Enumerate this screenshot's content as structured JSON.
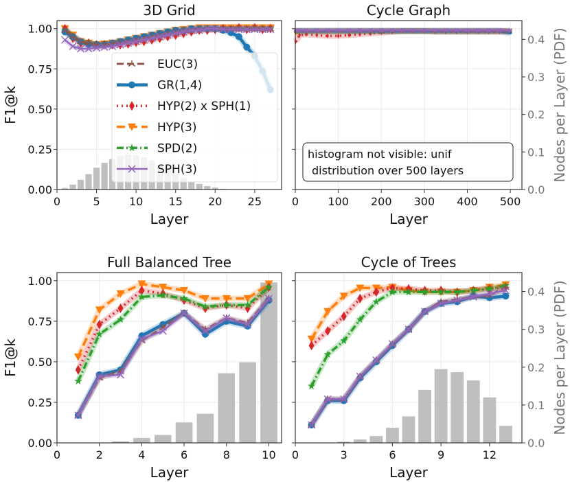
{
  "chart_data": [
    {
      "type": "line",
      "title": "3D Grid",
      "xlabel": "Layer",
      "ylabel": "F1@k",
      "y2label": "",
      "xlim": [
        0,
        28.4
      ],
      "ylim": [
        0,
        1.05
      ],
      "y2lim": [
        0,
        0.45
      ],
      "xticks": [
        0,
        5,
        10,
        15,
        20,
        25
      ],
      "yticks": [
        "0.00",
        "0.25",
        "0.50",
        "0.75",
        "1.00"
      ],
      "y2ticks": [],
      "grid": true,
      "legend_position": "center-right",
      "histogram": {
        "x": [
          1,
          2,
          3,
          4,
          5,
          6,
          7,
          8,
          9,
          10,
          11,
          12,
          13,
          14,
          15,
          16,
          17,
          18,
          19,
          20,
          21,
          22
        ],
        "values": [
          0.004,
          0.013,
          0.026,
          0.041,
          0.058,
          0.071,
          0.081,
          0.09,
          0.094,
          0.092,
          0.086,
          0.077,
          0.064,
          0.051,
          0.043,
          0.032,
          0.021,
          0.015,
          0.009,
          0.005,
          0.002,
          0.001
        ]
      },
      "x": [
        1,
        2,
        3,
        4,
        5,
        6,
        7,
        8,
        9,
        10,
        11,
        12,
        13,
        14,
        15,
        16,
        17,
        18,
        19,
        20,
        21,
        22,
        23,
        24,
        25,
        26,
        27
      ],
      "series": [
        {
          "name": "EUC(3)",
          "color": "#8c564b",
          "values": [
            0.99,
            0.95,
            0.92,
            0.91,
            0.9,
            0.9,
            0.91,
            0.915,
            0.92,
            0.93,
            0.94,
            0.95,
            0.96,
            0.97,
            0.98,
            0.99,
            0.99,
            1.0,
            1.0,
            1.0,
            1.0,
            1.0,
            1.0,
            1.0,
            1.0,
            1.0,
            1.0
          ]
        },
        {
          "name": "GR(1,4)",
          "color": "#1f77b4",
          "values": [
            0.98,
            0.95,
            0.92,
            0.9,
            0.9,
            0.9,
            0.91,
            0.92,
            0.93,
            0.94,
            0.95,
            0.96,
            0.97,
            0.98,
            0.99,
            0.99,
            1.0,
            1.0,
            1.0,
            1.0,
            0.99,
            0.975,
            0.95,
            0.885,
            0.83,
            0.735,
            0.62
          ]
        },
        {
          "name": "HYP(2) x SPH(1)",
          "color": "#d62728",
          "values": [
            1.0,
            0.94,
            0.91,
            0.91,
            0.9,
            0.9,
            0.9,
            0.9,
            0.905,
            0.915,
            0.92,
            0.93,
            0.94,
            0.95,
            0.96,
            0.97,
            0.98,
            0.99,
            0.99,
            0.995,
            1.0,
            0.995,
            1.005,
            0.995,
            1.005,
            0.995,
            1.0
          ]
        },
        {
          "name": "HYP(3)",
          "color": "#ff7f0e",
          "values": [
            1.0,
            0.96,
            0.92,
            0.91,
            0.9,
            0.905,
            0.91,
            0.92,
            0.93,
            0.94,
            0.95,
            0.96,
            0.97,
            0.98,
            0.99,
            0.995,
            1.0,
            1.005,
            1.005,
            1.005,
            1.005,
            1.005,
            1.005,
            1.005,
            1.005,
            1.005,
            1.005
          ]
        },
        {
          "name": "SPD(2)",
          "color": "#2ca02c",
          "values": [
            0.99,
            0.95,
            0.92,
            0.91,
            0.9,
            0.9,
            0.91,
            0.915,
            0.92,
            0.93,
            0.94,
            0.95,
            0.96,
            0.97,
            0.98,
            0.99,
            0.99,
            1.0,
            1.0,
            1.0,
            1.0,
            1.0,
            1.0,
            1.0,
            1.0,
            1.0,
            1.0
          ]
        },
        {
          "name": "SPH(3)",
          "color": "#9467bd",
          "values": [
            0.93,
            0.89,
            0.875,
            0.875,
            0.88,
            0.885,
            0.89,
            0.9,
            0.91,
            0.92,
            0.93,
            0.94,
            0.95,
            0.96,
            0.97,
            0.98,
            0.99,
            0.99,
            1.0,
            1.0,
            0.995,
            0.995,
            0.995,
            0.995,
            0.995,
            0.995,
            0.995
          ]
        }
      ]
    },
    {
      "type": "line",
      "title": "Cycle Graph",
      "xlabel": "Layer",
      "ylabel": "",
      "y2label": "Nodes per Layer (PDF)",
      "xlim": [
        0,
        527
      ],
      "ylim": [
        0,
        1.05
      ],
      "y2lim": [
        0,
        0.45
      ],
      "xticks": [
        0,
        100,
        200,
        300,
        400,
        500
      ],
      "yticks": [],
      "y2ticks": [
        "0.0",
        "0.1",
        "0.2",
        "0.3",
        "0.4"
      ],
      "grid": true,
      "annotation": [
        "histogram not visible: unif",
        "distribution over 500 layers"
      ],
      "histogram": {
        "x": [],
        "values": []
      },
      "x": [
        1,
        10,
        25,
        50,
        75,
        100,
        125,
        150,
        175,
        200,
        225,
        250,
        275,
        300,
        325,
        350,
        375,
        400,
        425,
        450,
        475,
        500
      ],
      "series": [
        {
          "name": "EUC(3)",
          "color": "#8c564b",
          "values": [
            0.985,
            0.985,
            0.985,
            0.985,
            0.985,
            0.985,
            0.985,
            0.985,
            0.985,
            0.985,
            0.985,
            0.985,
            0.985,
            0.985,
            0.985,
            0.985,
            0.985,
            0.985,
            0.985,
            0.985,
            0.985,
            0.985
          ]
        },
        {
          "name": "GR(1,4)",
          "color": "#1f77b4",
          "values": [
            0.985,
            0.985,
            0.985,
            0.985,
            0.985,
            0.985,
            0.985,
            0.985,
            0.985,
            0.985,
            0.985,
            0.985,
            0.985,
            0.985,
            0.985,
            0.985,
            0.985,
            0.985,
            0.985,
            0.985,
            0.985,
            0.975
          ]
        },
        {
          "name": "HYP(2) x SPH(1)",
          "color": "#d62728",
          "values": [
            0.92,
            0.96,
            0.965,
            0.96,
            0.955,
            0.955,
            0.96,
            0.965,
            0.97,
            0.975,
            0.98,
            0.985,
            0.985,
            0.985,
            0.98,
            0.98,
            0.98,
            0.98,
            0.98,
            0.98,
            0.98,
            0.98
          ]
        },
        {
          "name": "HYP(3)",
          "color": "#ff7f0e",
          "values": [
            0.97,
            0.985,
            0.985,
            0.985,
            0.985,
            0.985,
            0.985,
            0.985,
            0.985,
            0.985,
            0.985,
            0.985,
            0.985,
            0.985,
            0.985,
            0.985,
            0.985,
            0.985,
            0.985,
            0.985,
            0.985,
            0.985
          ]
        },
        {
          "name": "SPD(2)",
          "color": "#2ca02c",
          "values": [
            0.985,
            0.985,
            0.985,
            0.985,
            0.985,
            0.985,
            0.985,
            0.985,
            0.985,
            0.985,
            0.985,
            0.985,
            0.985,
            0.985,
            0.985,
            0.985,
            0.985,
            0.985,
            0.985,
            0.985,
            0.985,
            0.985
          ]
        },
        {
          "name": "SPH(3)",
          "color": "#9467bd",
          "values": [
            0.99,
            0.99,
            0.99,
            0.99,
            0.99,
            0.99,
            0.99,
            0.99,
            0.99,
            0.99,
            0.99,
            0.99,
            0.99,
            0.99,
            0.99,
            0.99,
            0.99,
            0.99,
            0.99,
            0.99,
            0.99,
            0.99
          ]
        }
      ]
    },
    {
      "type": "line",
      "title": "Full Balanced Tree",
      "xlabel": "Layer",
      "ylabel": "F1@k",
      "y2label": "",
      "xlim": [
        0,
        10.6
      ],
      "ylim": [
        0,
        1.05
      ],
      "y2lim": [
        0,
        0.45
      ],
      "xticks": [
        0,
        2,
        4,
        6,
        8,
        10
      ],
      "yticks": [
        "0.00",
        "0.25",
        "0.50",
        "0.75",
        "1.00"
      ],
      "y2ticks": [],
      "grid": true,
      "histogram": {
        "x": [
          1,
          2,
          3,
          4,
          5,
          6,
          7,
          8,
          9,
          10
        ],
        "values": [
          0,
          0.001,
          0.004,
          0.013,
          0.021,
          0.054,
          0.077,
          0.184,
          0.213,
          0.424
        ]
      },
      "x": [
        1,
        2,
        3,
        4,
        5,
        6,
        7,
        8,
        9,
        10
      ],
      "series": [
        {
          "name": "EUC(3)",
          "color": "#8c564b",
          "values": [
            0.17,
            0.4,
            0.44,
            0.63,
            0.71,
            0.8,
            0.7,
            0.77,
            0.74,
            0.89
          ]
        },
        {
          "name": "GR(1,4)",
          "color": "#1f77b4",
          "values": [
            0.17,
            0.42,
            0.45,
            0.66,
            0.73,
            0.8,
            0.67,
            0.75,
            0.72,
            0.88
          ]
        },
        {
          "name": "HYP(2) x SPH(1)",
          "color": "#d62728",
          "values": [
            0.45,
            0.73,
            0.83,
            0.94,
            0.92,
            0.88,
            0.83,
            0.85,
            0.83,
            0.96
          ]
        },
        {
          "name": "HYP(3)",
          "color": "#ff7f0e",
          "values": [
            0.53,
            0.82,
            0.92,
            0.98,
            0.96,
            0.94,
            0.89,
            0.89,
            0.89,
            0.98
          ]
        },
        {
          "name": "SPD(2)",
          "color": "#2ca02c",
          "values": [
            0.38,
            0.67,
            0.76,
            0.9,
            0.91,
            0.89,
            0.84,
            0.85,
            0.85,
            0.96
          ]
        },
        {
          "name": "SPH(3)",
          "color": "#9467bd",
          "values": [
            0.17,
            0.41,
            0.42,
            0.64,
            0.69,
            0.8,
            0.69,
            0.77,
            0.73,
            0.89
          ]
        }
      ]
    },
    {
      "type": "line",
      "title": "Cycle of Trees",
      "xlabel": "Layer",
      "ylabel": "",
      "y2label": "Nodes per Layer (PDF)",
      "xlim": [
        0,
        14.0
      ],
      "ylim": [
        0,
        1.05
      ],
      "y2lim": [
        0,
        0.45
      ],
      "xticks": [
        0,
        3,
        6,
        9,
        12
      ],
      "yticks": [],
      "y2ticks": [
        "0.0",
        "0.1",
        "0.2",
        "0.3",
        "0.4"
      ],
      "grid": true,
      "histogram": {
        "x": [
          1,
          2,
          3,
          4,
          5,
          6,
          7,
          8,
          9,
          10,
          11,
          12,
          13
        ],
        "values": [
          0,
          0.001,
          0.003,
          0.009,
          0.018,
          0.04,
          0.07,
          0.14,
          0.195,
          0.187,
          0.165,
          0.12,
          0.045
        ]
      },
      "x": [
        1,
        2,
        3,
        4,
        5,
        6,
        7,
        8,
        9,
        10,
        11,
        12,
        13
      ],
      "series": [
        {
          "name": "EUC(3)",
          "color": "#8c564b",
          "values": [
            0.11,
            0.27,
            0.27,
            0.41,
            0.51,
            0.61,
            0.7,
            0.81,
            0.87,
            0.885,
            0.9,
            0.91,
            0.96
          ]
        },
        {
          "name": "GR(1,4)",
          "color": "#1f77b4",
          "values": [
            0.11,
            0.26,
            0.26,
            0.4,
            0.5,
            0.6,
            0.7,
            0.81,
            0.86,
            0.87,
            0.905,
            0.895,
            0.905
          ]
        },
        {
          "name": "HYP(2) x SPH(1)",
          "color": "#d62728",
          "values": [
            0.6,
            0.69,
            0.78,
            0.89,
            0.93,
            0.955,
            0.95,
            0.94,
            0.94,
            0.93,
            0.94,
            0.95,
            0.96
          ]
        },
        {
          "name": "HYP(3)",
          "color": "#ff7f0e",
          "values": [
            0.64,
            0.81,
            0.905,
            0.955,
            0.955,
            0.96,
            0.94,
            0.93,
            0.93,
            0.93,
            0.94,
            0.96,
            0.975
          ]
        },
        {
          "name": "SPD(2)",
          "color": "#2ca02c",
          "values": [
            0.35,
            0.545,
            0.63,
            0.76,
            0.87,
            0.93,
            0.93,
            0.93,
            0.93,
            0.93,
            0.94,
            0.95,
            0.97
          ]
        },
        {
          "name": "SPH(3)",
          "color": "#9467bd",
          "values": [
            0.11,
            0.27,
            0.27,
            0.41,
            0.51,
            0.61,
            0.7,
            0.81,
            0.86,
            0.88,
            0.9,
            0.92,
            0.94
          ]
        }
      ]
    }
  ],
  "histogram_color": "#bfbfbf"
}
